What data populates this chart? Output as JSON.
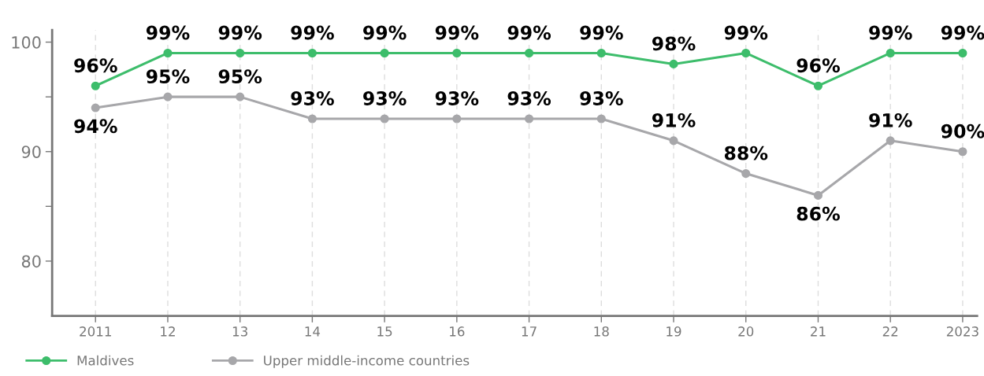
{
  "chart_data": {
    "type": "line",
    "categories": [
      "2011",
      "12",
      "13",
      "14",
      "15",
      "16",
      "17",
      "18",
      "19",
      "20",
      "21",
      "22",
      "2023"
    ],
    "series": [
      {
        "name": "Maldives",
        "color": "#3dbd6b",
        "values": [
          96,
          99,
          99,
          99,
          99,
          99,
          99,
          99,
          98,
          99,
          96,
          99,
          99
        ],
        "value_labels": [
          "96%",
          "99%",
          "99%",
          "99%",
          "99%",
          "99%",
          "99%",
          "99%",
          "98%",
          "99%",
          "96%",
          "99%",
          "99%"
        ]
      },
      {
        "name": "Upper middle-income countries",
        "color": "#a7a7aa",
        "values": [
          94,
          95,
          95,
          93,
          93,
          93,
          93,
          93,
          91,
          88,
          86,
          91,
          90
        ],
        "value_labels": [
          "94%",
          "95%",
          "95%",
          "93%",
          "93%",
          "93%",
          "93%",
          "93%",
          "91%",
          "88%",
          "86%",
          "91%",
          "90%"
        ]
      }
    ],
    "ylim": [
      75,
      101.1
    ],
    "yticks": [
      80,
      {
        "value": 85,
        "label": null
      },
      90,
      {
        "value": 95,
        "label": null
      },
      100
    ],
    "grid": "x",
    "legend": "bottom left",
    "marker": "circle",
    "line_style": "solid"
  }
}
